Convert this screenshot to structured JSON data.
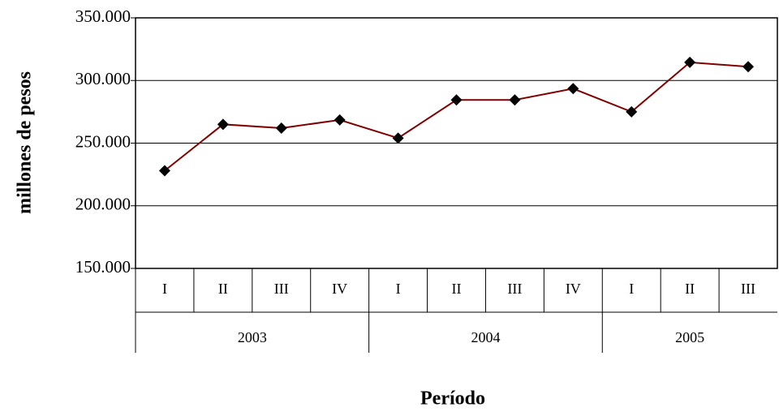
{
  "chart_data": {
    "type": "line",
    "y_label": "millones de pesos",
    "x_label": "Período",
    "categories": [
      "I",
      "II",
      "III",
      "IV",
      "I",
      "II",
      "III",
      "IV",
      "I",
      "II",
      "III"
    ],
    "groups": [
      "2003",
      "2004",
      "2005"
    ],
    "values": [
      228000,
      265000,
      262000,
      268500,
      254000,
      284500,
      284500,
      293500,
      275000,
      314500,
      311000
    ],
    "color": "#800000",
    "marker_color": "#000000",
    "ylim": [
      150000,
      350000
    ],
    "yticks": [
      {
        "value": 150000,
        "label": "150.000"
      },
      {
        "value": 200000,
        "label": "200.000"
      },
      {
        "value": 250000,
        "label": "250.000"
      },
      {
        "value": 300000,
        "label": "300.000"
      },
      {
        "value": 350000,
        "label": "350.000"
      }
    ],
    "grid": true
  }
}
